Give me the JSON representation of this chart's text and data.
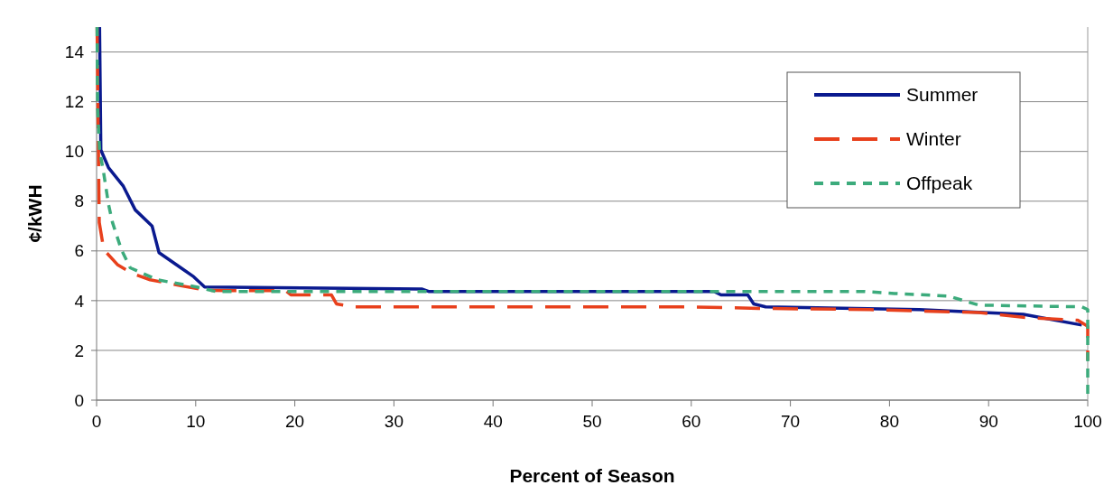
{
  "chart_data": {
    "type": "line",
    "xlabel": "Percent of Season",
    "ylabel": "¢/kWH",
    "xlim": [
      0,
      100
    ],
    "ylim": [
      0,
      15
    ],
    "xticks": [
      0,
      10,
      20,
      30,
      40,
      50,
      60,
      70,
      80,
      90,
      100
    ],
    "yticks": [
      0,
      2,
      4,
      6,
      8,
      10,
      12,
      14
    ],
    "grid": "y",
    "legend": "top right",
    "series": [
      {
        "name": "Summer",
        "color": "#0a1a8f",
        "line_style": "solid",
        "x": [
          0.3,
          0.43,
          1.2,
          2.7,
          3.9,
          5.6,
          6.3,
          8.5,
          9.8,
          10.9,
          32.8,
          33.5,
          62.3,
          63,
          65.7,
          66.3,
          67.5,
          83,
          93.5,
          99.4
        ],
        "values": [
          15,
          10.06,
          9.35,
          8.6,
          7.65,
          7.0,
          5.93,
          5.32,
          4.96,
          4.55,
          4.47,
          4.37,
          4.37,
          4.23,
          4.23,
          3.87,
          3.75,
          3.64,
          3.45,
          3.02
        ]
      },
      {
        "name": "Winter",
        "color": "#e8401c",
        "line_style": "dashed",
        "x": [
          0.05,
          0.2,
          0.27,
          0.73,
          2.1,
          3.6,
          5.4,
          8.5,
          11.2,
          19.1,
          19.6,
          23.7,
          24.2,
          26,
          59.5,
          66.8,
          78,
          89,
          93.5,
          99,
          100,
          100
        ],
        "values": [
          15,
          9.56,
          7.14,
          6.05,
          5.45,
          5.09,
          4.84,
          4.6,
          4.41,
          4.4,
          4.23,
          4.23,
          3.87,
          3.75,
          3.75,
          3.69,
          3.64,
          3.52,
          3.33,
          3.21,
          2.97,
          1.6
        ]
      },
      {
        "name": "Offpeak",
        "color": "#3cab7c",
        "line_style": "dotted",
        "x": [
          0.05,
          0.1,
          0.3,
          0.73,
          1.2,
          1.6,
          2.5,
          3.4,
          6.1,
          10.1,
          12,
          77.5,
          80.5,
          86,
          89,
          99.4,
          100,
          100
        ],
        "values": [
          15,
          11.75,
          10.06,
          9.1,
          7.88,
          7.15,
          6.05,
          5.32,
          4.84,
          4.55,
          4.37,
          4.37,
          4.29,
          4.18,
          3.82,
          3.75,
          3.64,
          0
        ]
      }
    ]
  }
}
